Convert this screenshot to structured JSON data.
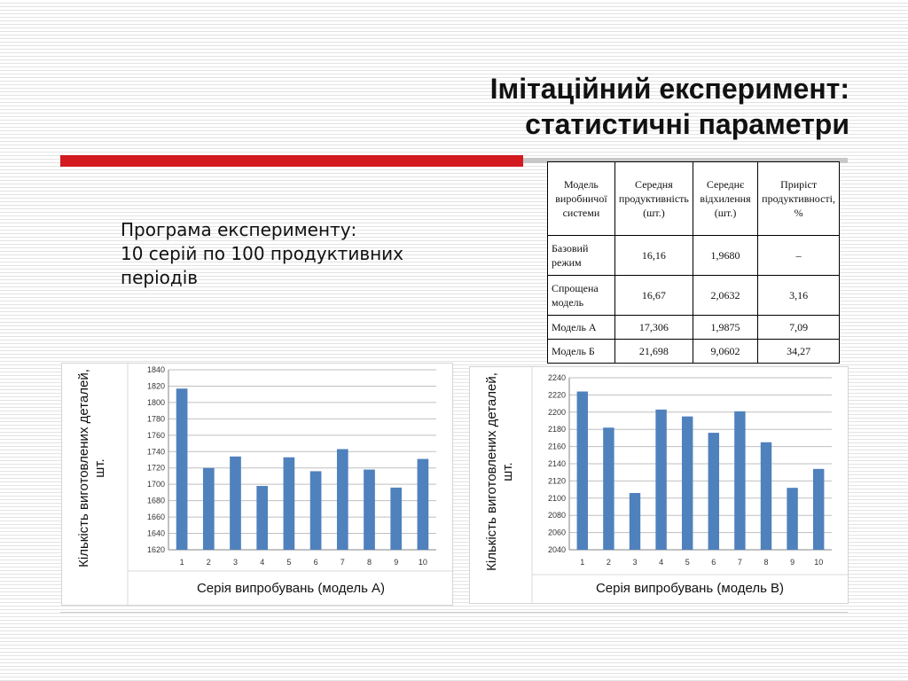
{
  "slide": {
    "title_line1": "Імітаційний експеримент:",
    "title_line2": "статистичні параметри",
    "program_line1": "Програма експерименту:",
    "program_line2": "10 серій по 100 продуктивних",
    "program_line3": "періодів"
  },
  "table": {
    "headers": [
      "Модель виробничої системи",
      "Середня продуктивність (шт.)",
      "Середнє відхилення (шт.)",
      "Приріст продуктивності, %"
    ],
    "rows": [
      [
        "Базовий режим",
        "16,16",
        "1,9680",
        "–"
      ],
      [
        "Спрощена модель",
        "16,67",
        "2,0632",
        "3,16"
      ],
      [
        "Модель А",
        "17,306",
        "1,9875",
        "7,09"
      ],
      [
        "Модель Б",
        "21,698",
        "9,0602",
        "34,27"
      ]
    ]
  },
  "chart_data": [
    {
      "type": "bar",
      "categories": [
        "1",
        "2",
        "3",
        "4",
        "5",
        "6",
        "7",
        "8",
        "9",
        "10"
      ],
      "values": [
        1817,
        1720,
        1734,
        1698,
        1733,
        1716,
        1743,
        1718,
        1696,
        1731
      ],
      "xlabel": "Серія випробувань (модель А)",
      "ylabel": "Кількість виготовлених деталей, шт.",
      "ylim": [
        1620,
        1840
      ],
      "yticks": [
        1620,
        1640,
        1660,
        1680,
        1700,
        1720,
        1740,
        1760,
        1780,
        1800,
        1820,
        1840
      ],
      "grid": true,
      "bar_color": "#4f81bd"
    },
    {
      "type": "bar",
      "categories": [
        "1",
        "2",
        "3",
        "4",
        "5",
        "6",
        "7",
        "8",
        "9",
        "10"
      ],
      "values": [
        2224,
        2182,
        2106,
        2203,
        2195,
        2176,
        2201,
        2165,
        2112,
        2134
      ],
      "xlabel": "Серія випробувань (модель В)",
      "ylabel": "Кількість виготовлених деталей, шт.",
      "ylim": [
        2040,
        2240
      ],
      "yticks": [
        2040,
        2060,
        2080,
        2100,
        2120,
        2140,
        2160,
        2180,
        2200,
        2220,
        2240
      ],
      "grid": true,
      "bar_color": "#4f81bd"
    }
  ]
}
